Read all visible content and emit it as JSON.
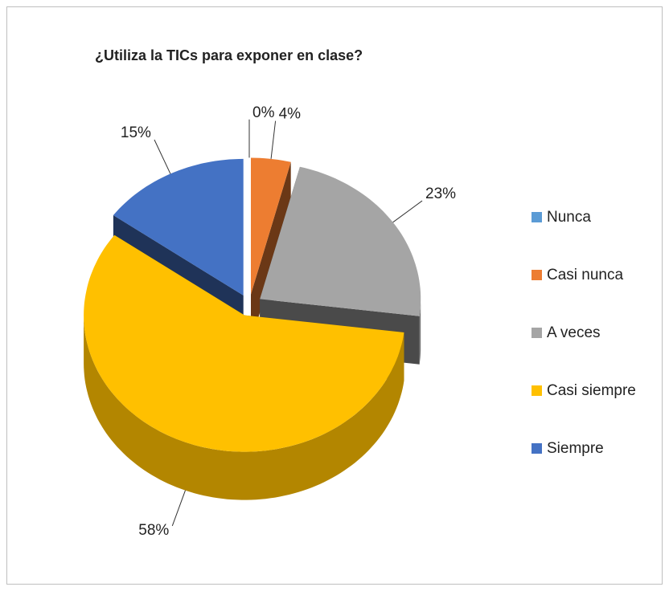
{
  "chart_data": {
    "type": "pie3d",
    "title": "¿Utiliza la TICs para exponer en clase?",
    "categories": [
      "Nunca",
      "Casi nunca",
      "A veces",
      "Casi siempre",
      "Siempre"
    ],
    "values": [
      0,
      4,
      23,
      58,
      15
    ],
    "value_labels": [
      "0%",
      "4%",
      "23%",
      "58%",
      "15%"
    ],
    "colors": [
      "#5b9bd5",
      "#ed7d31",
      "#a5a5a5",
      "#ffc000",
      "#4472c4"
    ],
    "legend": "right"
  }
}
